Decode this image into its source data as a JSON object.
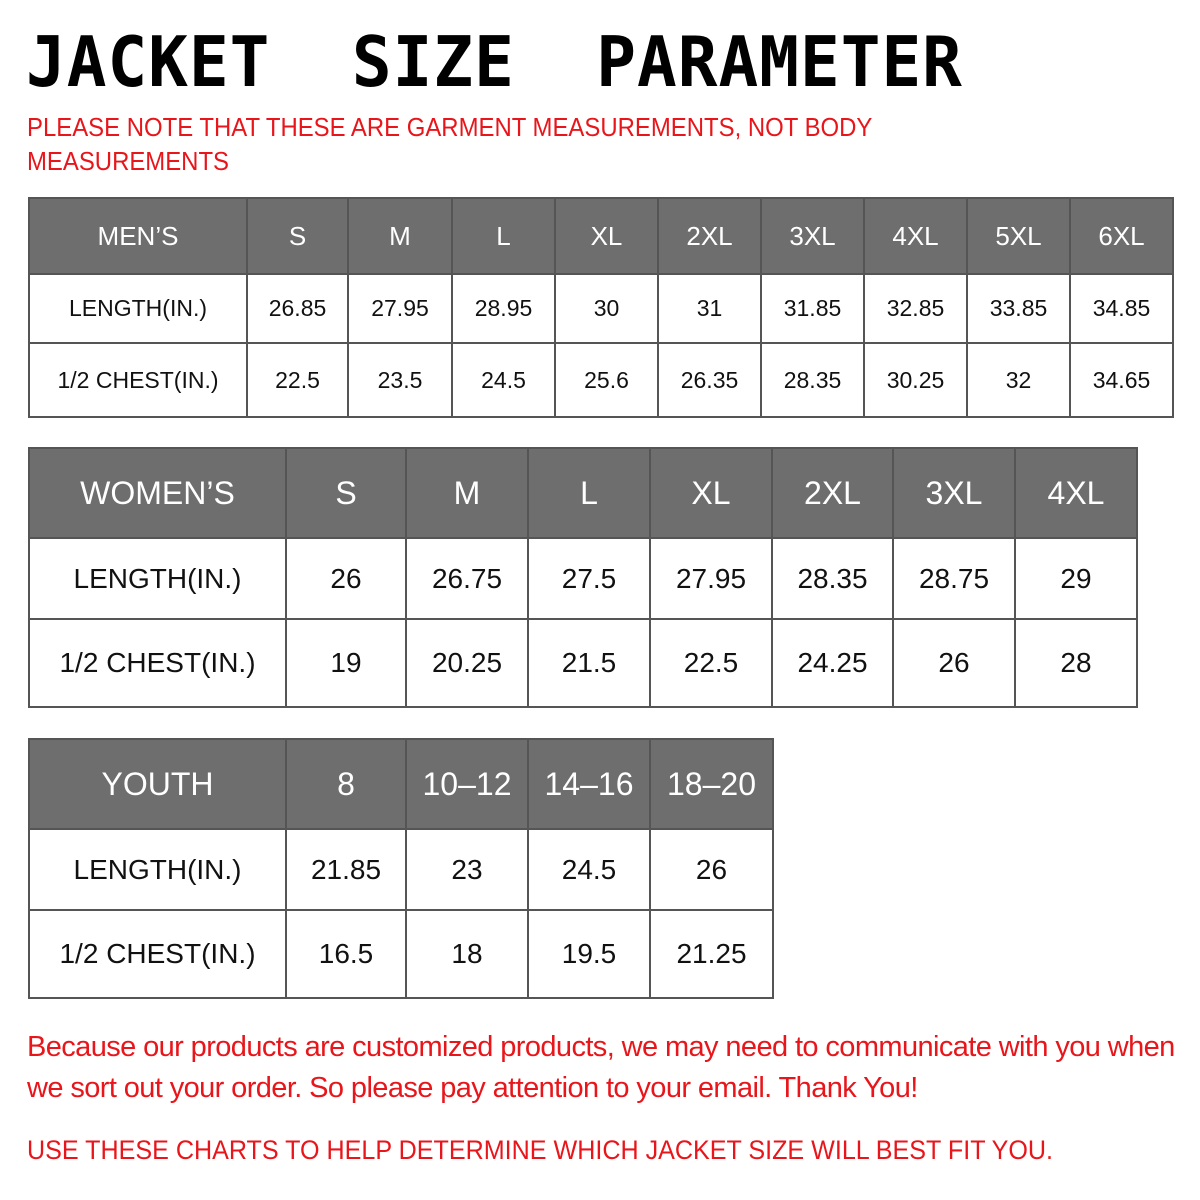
{
  "title": "JACKET  SIZE  PARAMETER",
  "note": "PLEASE NOTE THAT THESE ARE GARMENT MEASUREMENTS, NOT BODY MEASUREMENTS",
  "colors": {
    "header_bg": "#6e6e6e",
    "accent_red": "#e8161b"
  },
  "mens": {
    "header": [
      "MEN’S",
      "S",
      "M",
      "L",
      "XL",
      "2XL",
      "3XL",
      "4XL",
      "5XL",
      "6XL"
    ],
    "rows": [
      [
        "LENGTH(IN.)",
        "26.85",
        "27.95",
        "28.95",
        "30",
        "31",
        "31.85",
        "32.85",
        "33.85",
        "34.85"
      ],
      [
        "1/2 CHEST(IN.)",
        "22.5",
        "23.5",
        "24.5",
        "25.6",
        "26.35",
        "28.35",
        "30.25",
        "32",
        "34.65"
      ]
    ]
  },
  "womens": {
    "header": [
      "WOMEN’S",
      "S",
      "M",
      "L",
      "XL",
      "2XL",
      "3XL",
      "4XL"
    ],
    "rows": [
      [
        "LENGTH(IN.)",
        "26",
        "26.75",
        "27.5",
        "27.95",
        "28.35",
        "28.75",
        "29"
      ],
      [
        "1/2 CHEST(IN.)",
        "19",
        "20.25",
        "21.5",
        "22.5",
        "24.25",
        "26",
        "28"
      ]
    ]
  },
  "youth": {
    "header": [
      "YOUTH",
      "8",
      "10–12",
      "14–16",
      "18–20"
    ],
    "rows": [
      [
        "LENGTH(IN.)",
        "21.85",
        "23",
        "24.5",
        "26"
      ],
      [
        "1/2 CHEST(IN.)",
        "16.5",
        "18",
        "19.5",
        "21.25"
      ]
    ]
  },
  "footer": {
    "message": "Because our products are customized products, we may need to communicate with you when we sort out your order. So please pay attention to your email. Thank You!",
    "hint": "USE THESE CHARTS TO HELP DETERMINE WHICH JACKET SIZE WILL BEST FIT YOU."
  }
}
